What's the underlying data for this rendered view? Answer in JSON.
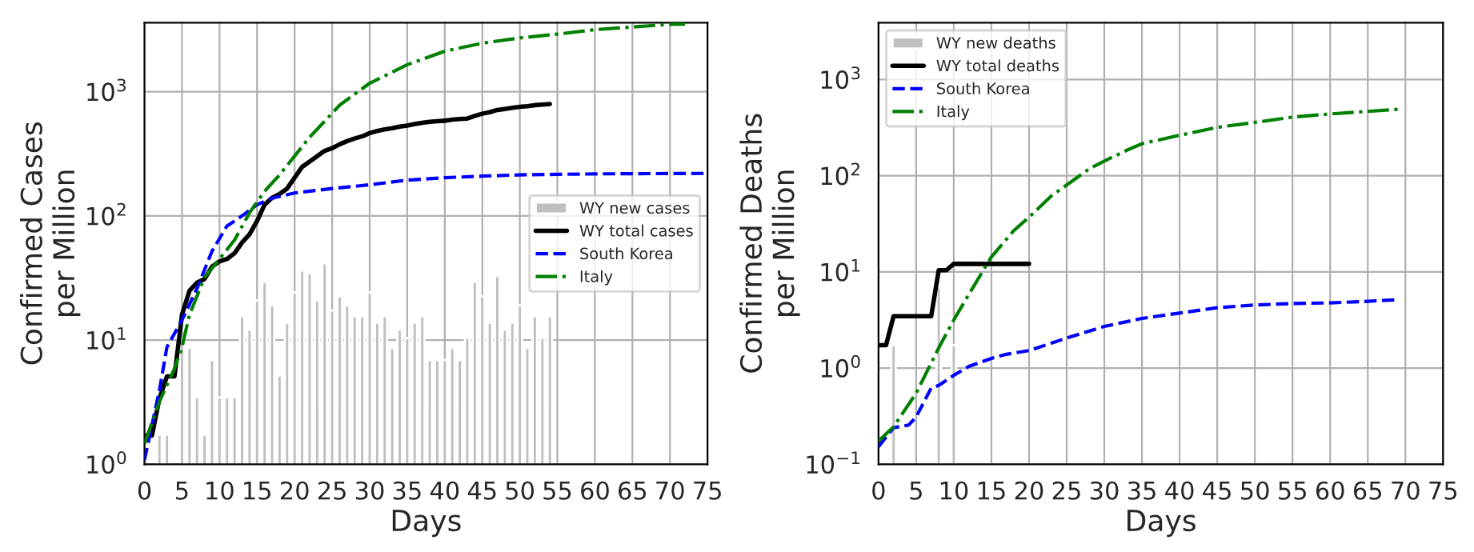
{
  "chart_data": [
    {
      "type": "line",
      "xlabel": "Days",
      "ylabel": "Confirmed Cases\nper Million",
      "log": "y",
      "grid": true,
      "legend": "right",
      "xlim": [
        0,
        75
      ],
      "xticks": [
        0,
        5,
        10,
        15,
        20,
        25,
        30,
        35,
        40,
        45,
        50,
        55,
        60,
        65,
        70,
        75
      ],
      "ylim": [
        1,
        3600
      ],
      "yticks": [
        {
          "value": 1,
          "label": "10$^{0}$"
        },
        {
          "value": 10,
          "label": "10$^{1}$"
        },
        {
          "value": 100,
          "label": "10$^{2}$"
        },
        {
          "value": 1000,
          "label": "10$^{3}$"
        }
      ],
      "series": [
        {
          "name": "WY new cases",
          "type": "bar",
          "color": "#bfbfbf",
          "x": [
            2,
            3,
            5,
            6,
            7,
            8,
            9,
            10,
            11,
            12,
            13,
            14,
            15,
            16,
            17,
            18,
            19,
            20,
            21,
            22,
            23,
            24,
            25,
            26,
            27,
            28,
            29,
            30,
            31,
            32,
            33,
            34,
            35,
            36,
            37,
            38,
            39,
            40,
            41,
            42,
            43,
            44,
            45,
            46,
            47,
            48,
            49,
            50,
            51,
            52,
            53,
            54
          ],
          "values": [
            1.73,
            1.73,
            10.4,
            8.65,
            3.46,
            1.73,
            6.92,
            3.46,
            3.46,
            3.46,
            15.6,
            12.1,
            20.8,
            29.4,
            19.0,
            5.19,
            13.8,
            24.2,
            36.3,
            34.6,
            20.8,
            41.5,
            17.3,
            22.5,
            19.0,
            15.6,
            15.6,
            24.2,
            13.8,
            15.6,
            8.65,
            12.1,
            10.4,
            13.8,
            15.6,
            6.92,
            6.92,
            6.92,
            8.65,
            6.92,
            10.4,
            29.4,
            22.5,
            13.8,
            32.9,
            12.1,
            13.8,
            19.0,
            8.65,
            15.6,
            10.4,
            15.6
          ]
        },
        {
          "name": "WY total cases",
          "color": "#000000",
          "line_style": "solid",
          "x": [
            0,
            1,
            2,
            3,
            4,
            5,
            6,
            7,
            8,
            9,
            10,
            11,
            12,
            13,
            14,
            15,
            16,
            17,
            18,
            19,
            20,
            21,
            22,
            23,
            24,
            25,
            26,
            27,
            28,
            29,
            30,
            31,
            32,
            33,
            34,
            35,
            36,
            37,
            38,
            39,
            40,
            41,
            42,
            43,
            44,
            45,
            46,
            47,
            48,
            49,
            50,
            51,
            52,
            53,
            54
          ],
          "values": [
            1.7,
            1.7,
            3.4,
            5.1,
            5.1,
            16,
            25,
            29,
            31,
            39,
            43,
            45,
            50,
            61,
            71,
            91,
            123,
            140,
            150,
            166,
            203,
            248,
            274,
            303,
            334,
            351,
            377,
            400,
            420,
            437,
            464,
            483,
            498,
            508,
            523,
            534,
            550,
            561,
            573,
            578,
            584,
            596,
            602,
            608,
            639,
            665,
            684,
            713,
            727,
            741,
            757,
            764,
            780,
            787,
            795
          ]
        },
        {
          "name": "South Korea",
          "color": "#0000ff",
          "line_style": "dashed",
          "x": [
            0,
            2,
            3,
            5,
            7,
            9,
            11,
            13,
            15,
            17,
            20,
            25,
            30,
            35,
            40,
            45,
            50,
            55,
            60,
            75
          ],
          "values": [
            1.08,
            3.96,
            8.8,
            14.5,
            26,
            52,
            83,
            100,
            123,
            139,
            153,
            166,
            178,
            194,
            203,
            209,
            214,
            216,
            218,
            220
          ]
        },
        {
          "name": "Italy",
          "color": "#008000",
          "line_style": "dashdot",
          "x": [
            0,
            2,
            4,
            5,
            6,
            8,
            10,
            12,
            14,
            16,
            18,
            20,
            22,
            24,
            26,
            28,
            30,
            35,
            40,
            45,
            50,
            55,
            60,
            65,
            70,
            72
          ],
          "values": [
            1.46,
            3.2,
            5.9,
            8.8,
            16,
            32,
            45,
            64,
            106,
            158,
            214,
            303,
            430,
            578,
            779,
            955,
            1170,
            1650,
            2120,
            2460,
            2710,
            2910,
            3160,
            3320,
            3490,
            3500
          ]
        }
      ]
    },
    {
      "type": "line",
      "xlabel": "Days",
      "ylabel": "Confirmed Deaths\nper Million",
      "log": "y",
      "grid": true,
      "legend": "top left",
      "xlim": [
        0,
        75
      ],
      "xticks": [
        0,
        5,
        10,
        15,
        20,
        25,
        30,
        35,
        40,
        45,
        50,
        55,
        60,
        65,
        70,
        75
      ],
      "ylim": [
        0.1,
        3900
      ],
      "yticks": [
        {
          "value": 0.1,
          "label": "10$^{−1}$"
        },
        {
          "value": 1,
          "label": "10$^{0}$"
        },
        {
          "value": 10,
          "label": "10$^{1}$"
        },
        {
          "value": 100,
          "label": "10$^{2}$"
        },
        {
          "value": 1000,
          "label": "10$^{3}$"
        }
      ],
      "series": [
        {
          "name": "WY new deaths",
          "type": "bar",
          "color": "#bfbfbf",
          "x": [
            2,
            8,
            10
          ],
          "values": [
            1.73,
            6.92,
            1.73
          ]
        },
        {
          "name": "WY total deaths",
          "color": "#000000",
          "line_style": "solid",
          "x": [
            0,
            1,
            2,
            3,
            4,
            5,
            6,
            7,
            8,
            9,
            10,
            11,
            12,
            13,
            14,
            15,
            16,
            17,
            18,
            19,
            20
          ],
          "values": [
            1.73,
            1.73,
            3.46,
            3.46,
            3.46,
            3.46,
            3.46,
            3.46,
            10.4,
            10.4,
            12.1,
            12.1,
            12.1,
            12.1,
            12.1,
            12.1,
            12.1,
            12.1,
            12.1,
            12.1,
            12.1
          ]
        },
        {
          "name": "South Korea",
          "color": "#0000ff",
          "line_style": "dashed",
          "x": [
            0,
            2,
            4,
            5,
            7,
            8,
            10,
            12,
            15,
            17,
            20,
            25,
            30,
            35,
            40,
            45,
            50,
            55,
            60,
            65,
            69
          ],
          "values": [
            0.152,
            0.24,
            0.255,
            0.31,
            0.62,
            0.66,
            0.84,
            1.04,
            1.26,
            1.39,
            1.52,
            2.05,
            2.71,
            3.28,
            3.73,
            4.24,
            4.52,
            4.69,
            4.76,
            4.94,
            5.14
          ]
        },
        {
          "name": "Italy",
          "color": "#008000",
          "line_style": "dashdot",
          "x": [
            0,
            2,
            5,
            8,
            10,
            12,
            15,
            18,
            20,
            23,
            25,
            28,
            30,
            33,
            35,
            40,
            45,
            50,
            55,
            60,
            65,
            69
          ],
          "values": [
            0.174,
            0.245,
            0.548,
            1.62,
            3.16,
            5.84,
            14.3,
            27,
            37,
            62,
            80,
            118,
            142,
            184,
            215,
            263,
            318,
            358,
            406,
            438,
            466,
            490
          ]
        }
      ]
    }
  ]
}
